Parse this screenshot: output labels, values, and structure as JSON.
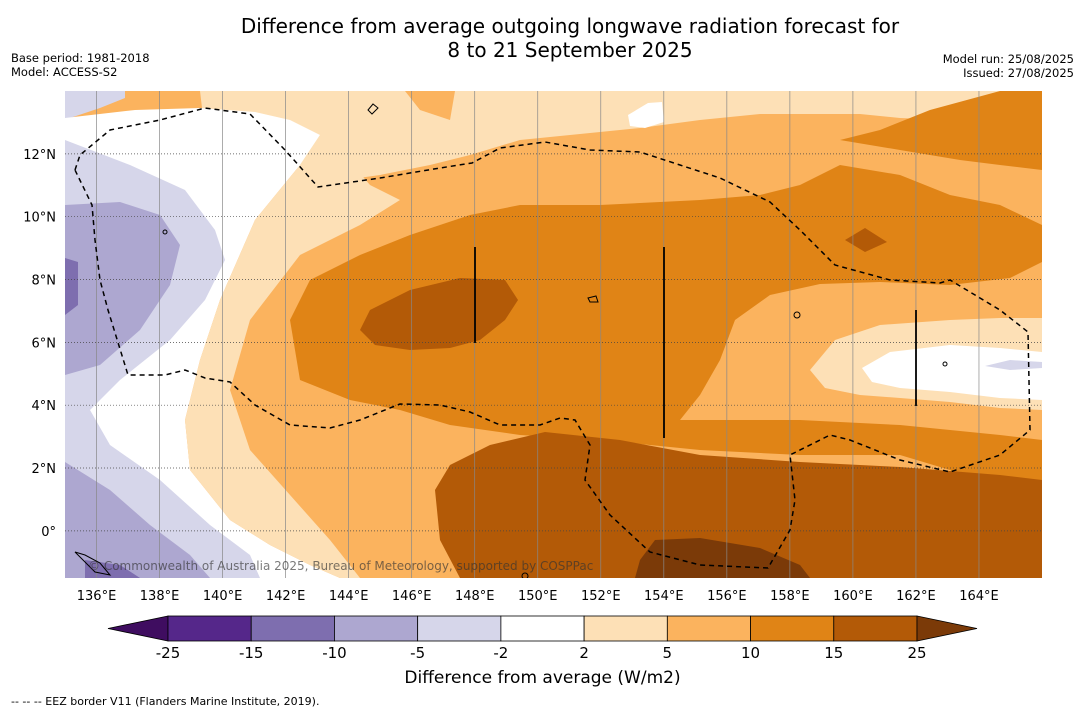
{
  "title_line1": "Difference from average outgoing longwave radiation forecast for",
  "title_line2": "8 to 21 September 2025",
  "meta_left": [
    "Base period: 1981-2018",
    "Model: ACCESS-S2"
  ],
  "meta_right": [
    "Model run: 25/08/2025",
    "Issued: 27/08/2025"
  ],
  "map": {
    "lon_range": [
      135,
      166
    ],
    "lat_range": [
      -1.5,
      14
    ],
    "lon_ticks": [
      "136°E",
      "138°E",
      "140°E",
      "142°E",
      "144°E",
      "146°E",
      "148°E",
      "150°E",
      "152°E",
      "154°E",
      "156°E",
      "158°E",
      "160°E",
      "162°E",
      "164°E"
    ],
    "lat_ticks": [
      "12°N",
      "10°N",
      "8°N",
      "6°N",
      "4°N",
      "2°N",
      "0°"
    ],
    "copyright": "© Commonwealth of Australia 2025, Bureau of Meteorology, supported by COSPPac",
    "eez_line_style": "dashed"
  },
  "colorbar": {
    "labels": [
      "-25",
      "-15",
      "-10",
      "-5",
      "-2",
      "2",
      "5",
      "10",
      "15",
      "25"
    ],
    "colors": [
      "#55278a",
      "#7e6eaf",
      "#ada7d0",
      "#d6d6ea",
      "#ffffff",
      "#fde0b6",
      "#fbb35e",
      "#e08416",
      "#b35a07",
      "#7b3a08"
    ],
    "extend_min_color": "#3f0d60",
    "extend_max_color": "#7b3a08",
    "title": "Difference from average (W/m2)"
  },
  "footer": "--  --  -- EEZ border V11 (Flanders Marine Institute, 2019)."
}
